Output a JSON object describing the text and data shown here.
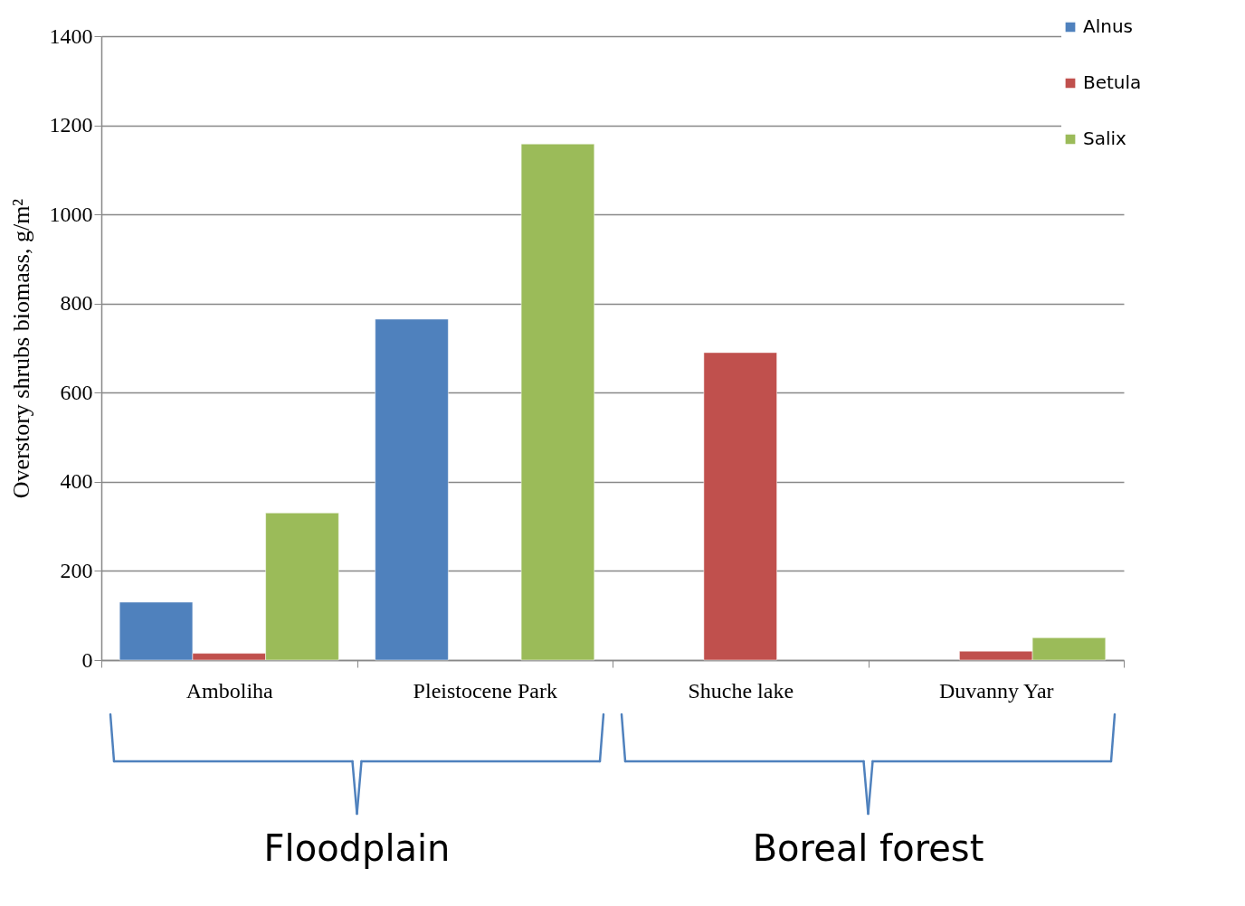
{
  "chart_data": {
    "type": "bar",
    "ylabel": "Overstory shrubs biomass, g/m²",
    "categories": [
      "Amboliha",
      "Pleistocene Park",
      "Shuche lake",
      "Duvanny Yar"
    ],
    "series": [
      {
        "name": "Alnus",
        "color": "#4f81bd",
        "values": [
          130,
          765,
          null,
          null
        ]
      },
      {
        "name": "Betula",
        "color": "#c0504d",
        "values": [
          15,
          null,
          690,
          20
        ]
      },
      {
        "name": "Salix",
        "color": "#9bbb59",
        "values": [
          330,
          1158,
          null,
          50
        ]
      }
    ],
    "ylim": [
      0,
      1400
    ],
    "yticks": [
      0,
      200,
      400,
      600,
      800,
      1000,
      1200,
      1400
    ],
    "grid": "y",
    "legend": "top right",
    "annotations": [
      "Floodplain",
      "Boreal forest"
    ]
  }
}
